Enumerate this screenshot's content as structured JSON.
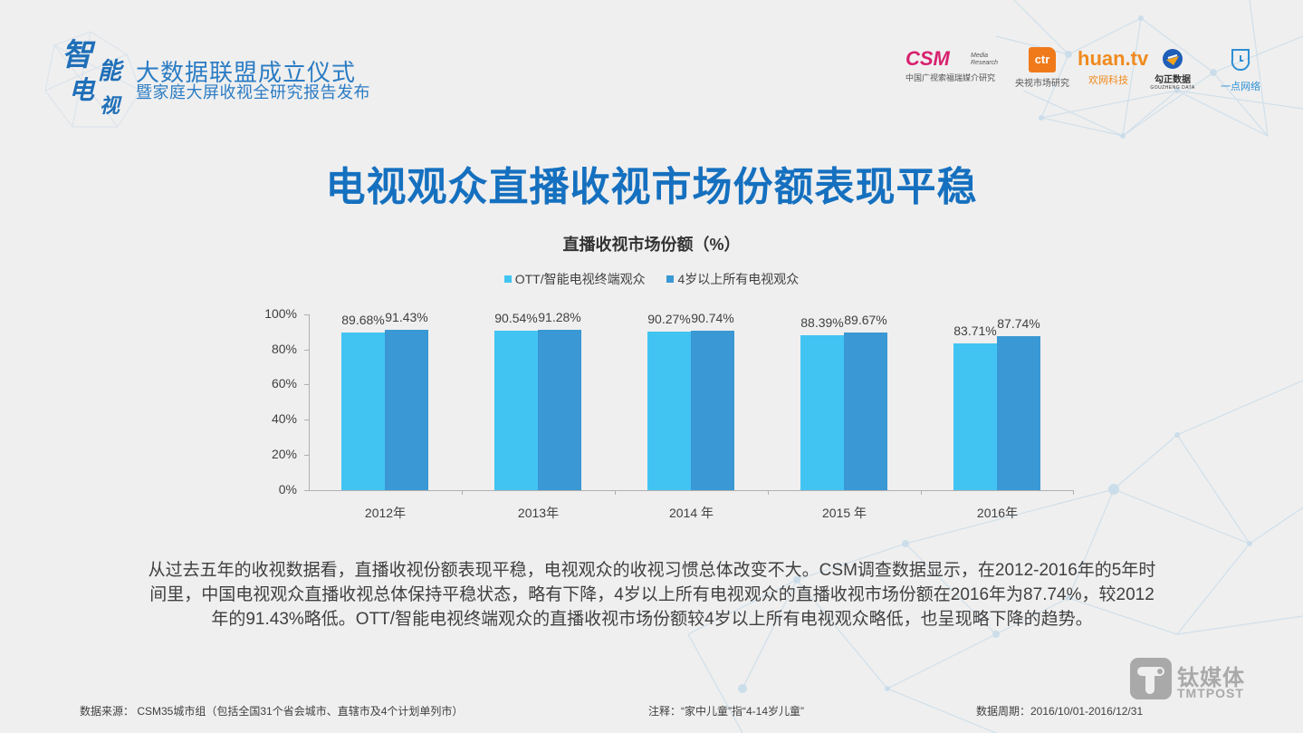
{
  "header": {
    "brand_mark": [
      "智",
      "能",
      "电",
      "视"
    ],
    "brand_title": "大数据联盟成立仪式",
    "brand_subtitle": "暨家庭大屏收视全研究报告发布",
    "partners": [
      {
        "name": "CSM",
        "tagline": "Media Research",
        "caption": "中国广视索福瑞媒介研究"
      },
      {
        "name": "ctr",
        "caption": "央视市场研究"
      },
      {
        "name": "huan.tv",
        "caption": "欢网科技"
      },
      {
        "name": "勾正数据",
        "tagline": "GOUZHENG DATA"
      },
      {
        "name": "一点网络",
        "caption": "一点网络"
      }
    ]
  },
  "page": {
    "title": "电视观众直播收视市场份额表现平稳"
  },
  "colors": {
    "title_blue": "#1570bf",
    "series_light": "#41c4f2",
    "series_dark": "#3a98d4",
    "axis": "#b0b0b0"
  },
  "chart_data": {
    "type": "bar",
    "title": "直播收视市场份额（%）",
    "categories": [
      "2012年",
      "2013年",
      "2014 年",
      "2015 年",
      "2016年"
    ],
    "series": [
      {
        "name": "OTT/智能电视终端观众",
        "values": [
          89.68,
          90.54,
          90.27,
          88.39,
          83.71
        ],
        "labels": [
          "89.68%",
          "90.54%",
          "90.27%",
          "88.39%",
          "83.71%"
        ],
        "color": "#41c4f2"
      },
      {
        "name": "4岁以上所有电视观众",
        "values": [
          91.43,
          91.28,
          90.74,
          89.67,
          87.74
        ],
        "labels": [
          "91.43%",
          "91.28%",
          "90.74%",
          "89.67%",
          "87.74%"
        ],
        "color": "#3a98d4"
      }
    ],
    "xlabel": "",
    "ylabel": "",
    "ylim": [
      0,
      100
    ],
    "yticks": [
      "0%",
      "20%",
      "40%",
      "60%",
      "80%",
      "100%"
    ],
    "legend_position": "top",
    "grid": false
  },
  "description": "从过去五年的收视数据看，直播收视份额表现平稳，电视观众的收视习惯总体改变不大。CSM调查数据显示，在2012-2016年的5年时间里，中国电视观众直播收视总体保持平稳状态，略有下降，4岁以上所有电视观众的直播收视市场份额在2016年为87.74%，较2012年的91.43%略低。OTT/智能电视终端观众的直播收视市场份额较4岁以上所有电视观众略低，也呈现略下降的趋势。",
  "description_lines": [
    "从过去五年的收视数据看，直播收视份额表现平稳，电视观众的收视习惯总体改变不大。CSM调查数据显示，在2012-2016年的5年时",
    "间里，中国电视观众直播收视总体保持平稳状态，略有下降，4岁以上所有电视观众的直播收视市场份额在2016年为87.74%，较2012",
    "年的91.43%略低。OTT/智能电视终端观众的直播收视市场份额较4岁以上所有电视观众略低，也呈现略下降的趋势。"
  ],
  "footer": {
    "source": "数据来源： CSM35城市组（包括全国31个省会城市、直辖市及4个计划单列市）",
    "note": "注释：“家中儿童”指“4-14岁儿童”",
    "period": "数据周期：2016/10/01-2016/12/31"
  },
  "watermark": {
    "cn": "钛媒体",
    "en": "TMTPOST"
  }
}
